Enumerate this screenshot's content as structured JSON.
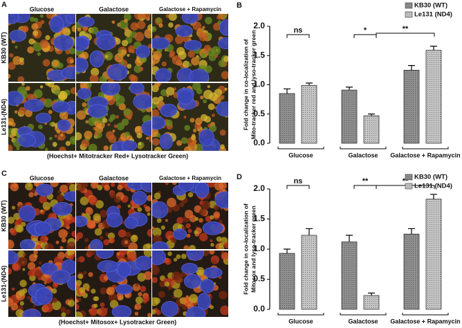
{
  "panels": [
    {
      "label": "A",
      "columns": [
        "Glucose",
        "Galactose",
        "Galactose + Rapamycin"
      ],
      "rows": [
        "KB30 (WT)",
        "Le131-(ND4)"
      ],
      "caption": "(Hoechst+ Mitotracker Red+ Lysotracker Green)"
    },
    {
      "label": "C",
      "columns": [
        "Glucose",
        "Galactose",
        "Galactose + Rapamycin"
      ],
      "rows": [
        "KB30 (WT)",
        "Le131-(ND4)"
      ],
      "caption": "(Hoechst+ Mitosox+ Lysotracker Green)"
    }
  ],
  "chart_data": [
    {
      "type": "bar",
      "panel_label": "B",
      "ylabel": [
        "Fold change in co-localization of",
        "Mito-tracker red and lyso-tracker green"
      ],
      "categories": [
        "Glucose",
        "Galactose",
        "Galactose + Rapamycin"
      ],
      "series": [
        {
          "name": "KB30 (WT)",
          "color": "#8f8f8f",
          "values": [
            0.85,
            0.91,
            1.25
          ],
          "errors": [
            0.08,
            0.05,
            0.08
          ]
        },
        {
          "name": "Le131 (ND4)",
          "color": "#c4c4c4",
          "values": [
            0.99,
            0.47,
            1.59
          ],
          "errors": [
            0.04,
            0.03,
            0.07
          ]
        }
      ],
      "ylim": [
        0,
        2.0
      ],
      "yticks": [
        {
          "value": 0,
          "label": "0.0"
        },
        {
          "value": 0.5,
          "label": "0.5"
        },
        {
          "value": 1,
          "label": "1.0"
        },
        {
          "value": 1.5,
          "label": "1.5"
        },
        {
          "value": 2,
          "label": "2.0"
        }
      ],
      "annotations": [
        "ns",
        "*",
        "**"
      ],
      "legend": "top-right"
    },
    {
      "type": "bar",
      "panel_label": "D",
      "ylabel": [
        "Fold change in co-localization of",
        "Mitosox and lyso-tracker green"
      ],
      "categories": [
        "Glucose",
        "Galactose",
        "Galactose + Rapamycin"
      ],
      "series": [
        {
          "name": "KB30 (WT)",
          "color": "#8f8f8f",
          "values": [
            0.93,
            1.12,
            1.25
          ],
          "errors": [
            0.07,
            0.11,
            0.09
          ]
        },
        {
          "name": "Le131 (ND4)",
          "color": "#c4c4c4",
          "values": [
            1.23,
            0.23,
            1.83
          ],
          "errors": [
            0.11,
            0.04,
            0.08
          ]
        }
      ],
      "ylim": [
        0,
        2.0
      ],
      "yticks": [
        {
          "value": 0,
          "label": "0.0"
        },
        {
          "value": 0.5,
          "label": "0.5"
        },
        {
          "value": 1,
          "label": "1.0"
        },
        {
          "value": 1.5,
          "label": "1.5"
        },
        {
          "value": 2,
          "label": "2.0"
        }
      ],
      "annotations": [
        "ns",
        "**",
        "**"
      ],
      "legend": "top-right"
    }
  ]
}
